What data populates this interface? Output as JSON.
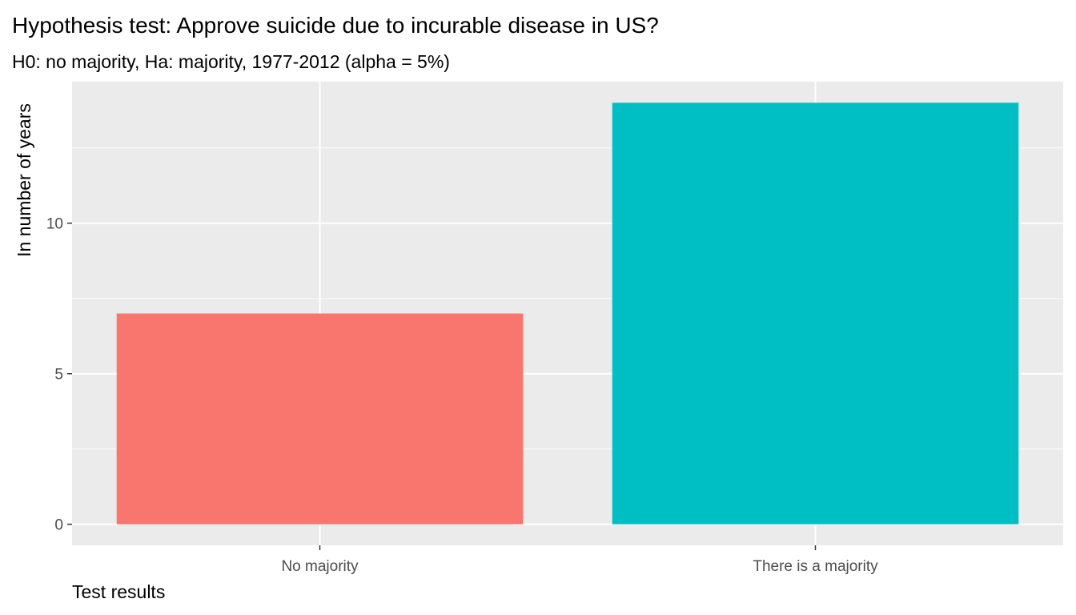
{
  "chart_data": {
    "type": "bar",
    "title": "Hypothesis test: Approve suicide due to incurable disease in US?",
    "subtitle": "H0: no majority, Ha: majority, 1977-2012 (alpha = 5%)",
    "xlabel": "Test results",
    "ylabel": "In number of years",
    "categories": [
      "No majority",
      "There is a majority"
    ],
    "values": [
      7,
      14
    ],
    "colors": [
      "#F8766D",
      "#00BFC4"
    ],
    "ylim": [
      -0.7,
      14.7
    ],
    "y_ticks": [
      0,
      5,
      10
    ],
    "y_minor_ticks": [
      2.5,
      7.5,
      12.5
    ],
    "grid": true,
    "panel_background": "#EBEBEB",
    "grid_color": "#FFFFFF",
    "legend": "none"
  }
}
